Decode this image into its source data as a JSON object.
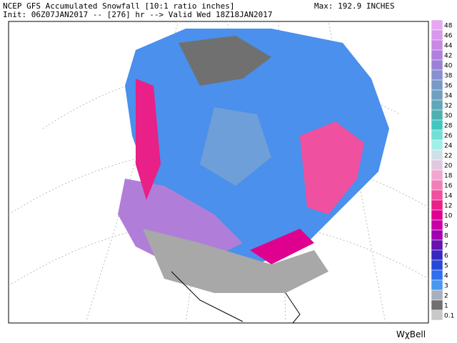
{
  "header": {
    "title": "NCEP GFS Accumulated Snowfall [10:1 ratio inches]",
    "init": "Init: 06Z07JAN2017 -- [276] hr --> Valid Wed 18Z18JAN2017",
    "max": "Max: 192.9 INCHES"
  },
  "legend": {
    "items": [
      {
        "label": "48",
        "color": "#e6a8f0"
      },
      {
        "label": "46",
        "color": "#d898ec"
      },
      {
        "label": "44",
        "color": "#c888e4"
      },
      {
        "label": "42",
        "color": "#b080dc"
      },
      {
        "label": "40",
        "color": "#9c80d8"
      },
      {
        "label": "38",
        "color": "#8890d0"
      },
      {
        "label": "36",
        "color": "#7898c8"
      },
      {
        "label": "34",
        "color": "#70a0c0"
      },
      {
        "label": "32",
        "color": "#60a8b8"
      },
      {
        "label": "30",
        "color": "#50b0b0"
      },
      {
        "label": "28",
        "color": "#40c8c0"
      },
      {
        "label": "26",
        "color": "#70e0d8"
      },
      {
        "label": "24",
        "color": "#a0f0e8"
      },
      {
        "label": "22",
        "color": "#d0e0e8"
      },
      {
        "label": "20",
        "color": "#e0c8e0"
      },
      {
        "label": "18",
        "color": "#f0a8d0"
      },
      {
        "label": "16",
        "color": "#f080b8"
      },
      {
        "label": "14",
        "color": "#f050a0"
      },
      {
        "label": "12",
        "color": "#e82088"
      },
      {
        "label": "10",
        "color": "#e00090"
      },
      {
        "label": "9",
        "color": "#c800a8"
      },
      {
        "label": "8",
        "color": "#a000b0"
      },
      {
        "label": "7",
        "color": "#6810b0"
      },
      {
        "label": "6",
        "color": "#3828c0"
      },
      {
        "label": "5",
        "color": "#2848d8"
      },
      {
        "label": "4",
        "color": "#3070f0"
      },
      {
        "label": "3",
        "color": "#4898f0"
      },
      {
        "label": "2",
        "color": "#a8b0c0"
      },
      {
        "label": "1",
        "color": "#707070"
      },
      {
        "label": "0.1",
        "color": "#c8c8c8"
      }
    ]
  },
  "watermark": "WχBell"
}
